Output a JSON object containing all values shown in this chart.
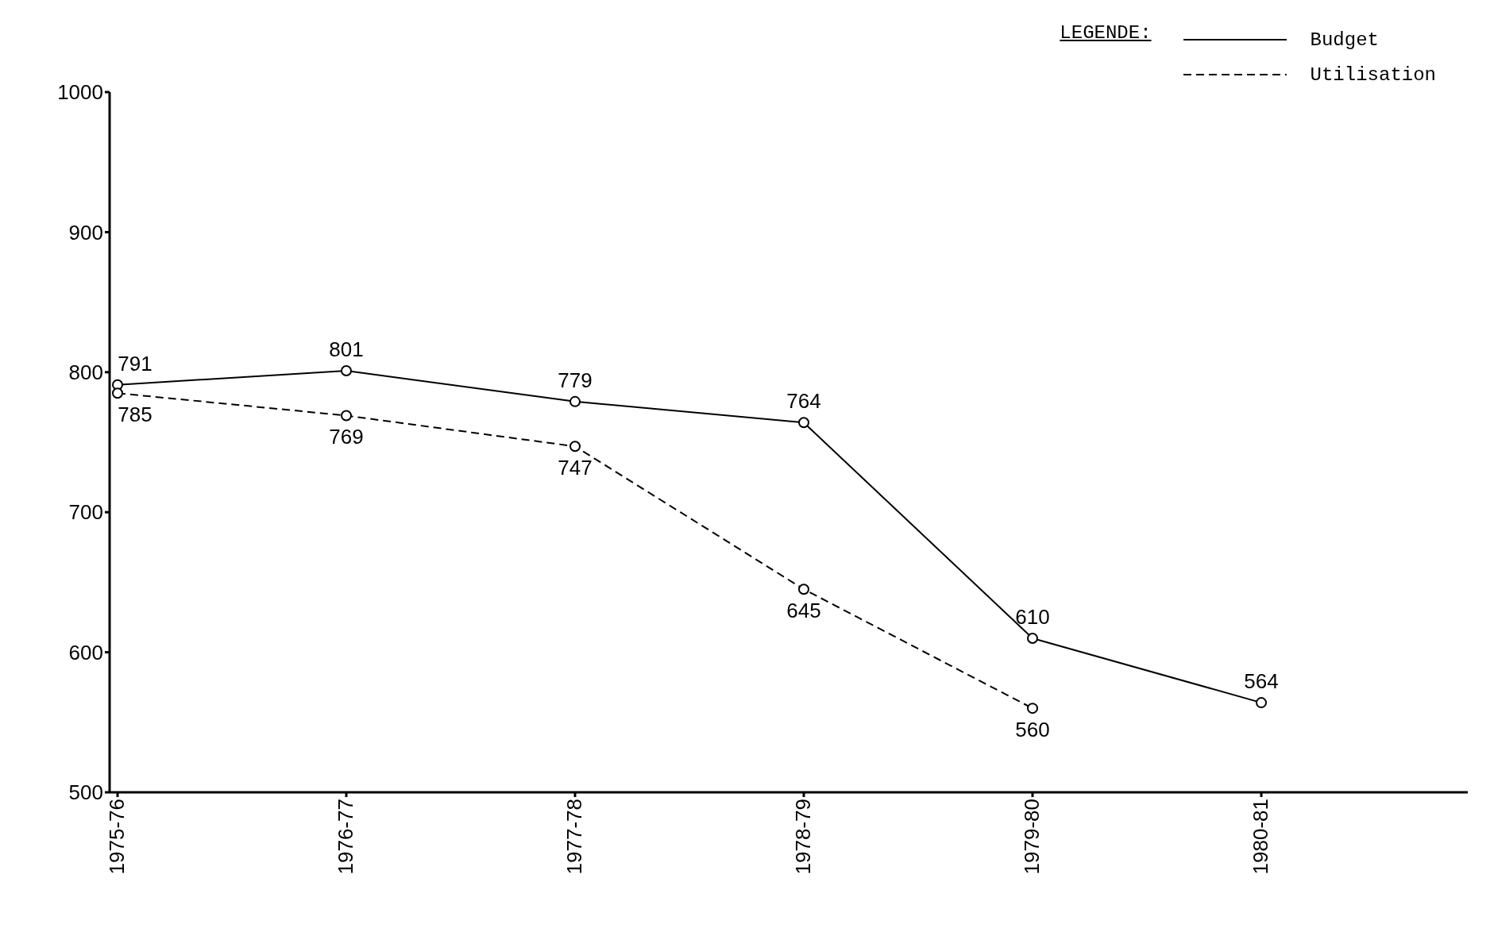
{
  "chart_data": {
    "type": "line",
    "categories": [
      "1975-76",
      "1976-77",
      "1977-78",
      "1978-79",
      "1979-80",
      "1980-81"
    ],
    "series": [
      {
        "name": "Budget",
        "color": "#000000",
        "line_style": "solid",
        "values": [
          791,
          801,
          779,
          764,
          610,
          564
        ]
      },
      {
        "name": "Utilisation",
        "color": "#000000",
        "line_style": "dashed",
        "values": [
          785,
          769,
          747,
          645,
          560,
          null
        ]
      }
    ],
    "ylim": [
      500,
      1000
    ],
    "yticks": [
      500,
      600,
      700,
      800,
      900,
      1000
    ],
    "grid": false,
    "legend": "top right",
    "legend_title": "LEGENDE:",
    "marker": "circle",
    "data_labels": true
  }
}
